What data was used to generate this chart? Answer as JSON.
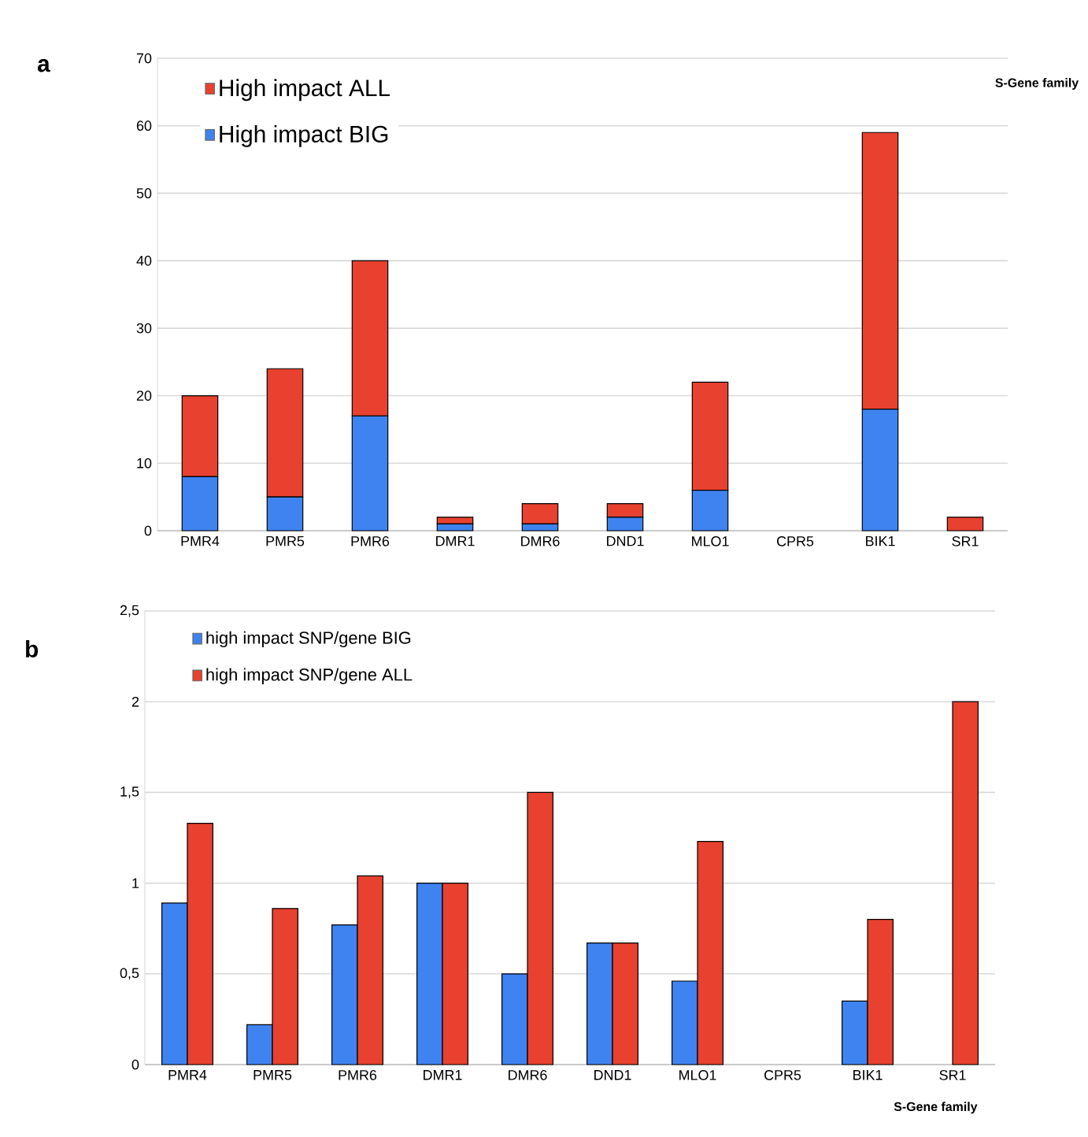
{
  "chart_data": [
    {
      "type": "bar",
      "stacked": true,
      "xlabel": "S-Gene family",
      "annotations": [
        "a"
      ],
      "categories": [
        "PMR4",
        "PMR5",
        "PMR6",
        "DMR1",
        "DMR6",
        "DND1",
        "MLO1",
        "CPR5",
        "BIK1",
        "SR1"
      ],
      "series": [
        {
          "name": "High impact BIG",
          "color": "#3f83f0",
          "values": [
            8,
            5,
            17,
            1,
            1,
            2,
            6,
            0,
            18,
            0
          ]
        },
        {
          "name": "High impact ALL",
          "color": "#e8412f",
          "values": [
            12,
            19,
            23,
            1,
            3,
            2,
            16,
            0,
            41,
            2
          ]
        }
      ],
      "ylim": [
        0,
        70
      ],
      "yticks": [
        0,
        10,
        20,
        30,
        40,
        50,
        60,
        70
      ],
      "grid": "y",
      "legend": "top left"
    },
    {
      "type": "bar",
      "xlabel": "S-Gene family",
      "annotations": [
        "b"
      ],
      "categories": [
        "PMR4",
        "PMR5",
        "PMR6",
        "DMR1",
        "DMR6",
        "DND1",
        "MLO1",
        "CPR5",
        "BIK1",
        "SR1"
      ],
      "series": [
        {
          "name": "high impact SNP/gene BIG",
          "color": "#3f83f0",
          "values": [
            0.89,
            0.22,
            0.77,
            1,
            0.5,
            0.67,
            0.46,
            null,
            0.35,
            null
          ]
        },
        {
          "name": "high impact SNP/gene ALL",
          "color": "#e8412f",
          "values": [
            1.33,
            0.86,
            1.04,
            1,
            1.5,
            0.67,
            1.23,
            null,
            0.8,
            2
          ]
        }
      ],
      "ylim": [
        0,
        2.5
      ],
      "yticks": [
        0,
        {
          "value": 0.5,
          "label": "0,5"
        },
        1,
        {
          "value": 1.5,
          "label": "1,5"
        },
        2,
        {
          "value": 2.5,
          "label": "2,5"
        }
      ],
      "grid": "y",
      "legend": "top left"
    }
  ]
}
